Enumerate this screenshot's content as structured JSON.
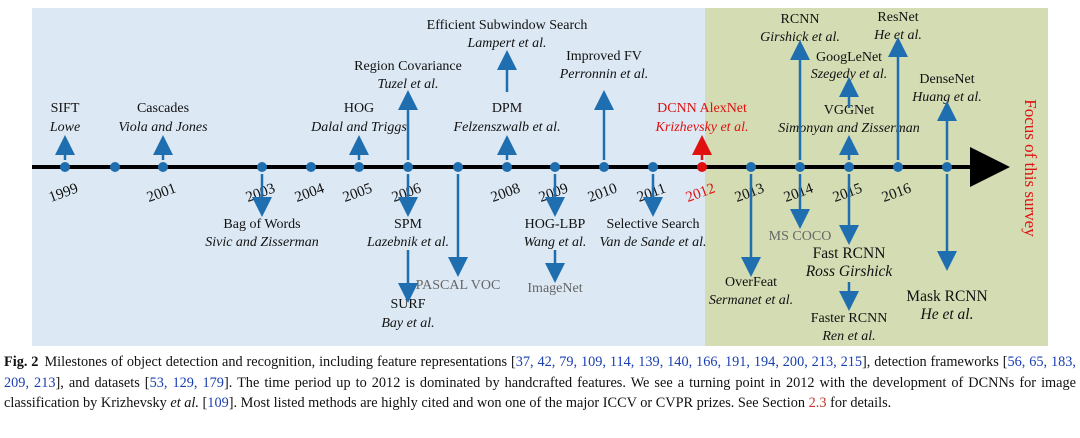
{
  "figure": {
    "side_label": "Focus of this survey",
    "years": [
      "1999",
      "2001",
      "2003",
      "2004",
      "2005",
      "2006",
      "2008",
      "2009",
      "2010",
      "2011",
      "2012",
      "2013",
      "2014",
      "2015",
      "2016"
    ],
    "milestones": [
      {
        "label": "SIFT",
        "authors": "Lowe"
      },
      {
        "label": "Cascades",
        "authors": "Viola and Jones"
      },
      {
        "label": "HOG",
        "authors": "Dalal and Triggs"
      },
      {
        "label": "Region Covariance",
        "authors": "Tuzel et al."
      },
      {
        "label": "Efficient Subwindow Search",
        "authors": "Lampert et al."
      },
      {
        "label": "DPM",
        "authors": "Felzenszwalb et al."
      },
      {
        "label": "Improved FV",
        "authors": "Perronnin et al."
      },
      {
        "label": "DCNN AlexNet",
        "authors": "Krizhevsky et al."
      },
      {
        "label": "RCNN",
        "authors": "Girshick et al."
      },
      {
        "label": "GoogLeNet",
        "authors": "Szegedy et al."
      },
      {
        "label": "VGGNet",
        "authors": "Simonyan and Zisserman"
      },
      {
        "label": "ResNet",
        "authors": "He et al."
      },
      {
        "label": "DenseNet",
        "authors": "Huang et al."
      },
      {
        "label": "Bag of Words",
        "authors": "Sivic and Zisserman"
      },
      {
        "label": "SPM",
        "authors": "Lazebnik et al."
      },
      {
        "label": "SURF",
        "authors": "Bay et al."
      },
      {
        "label": "PASCAL VOC"
      },
      {
        "label": "HOG-LBP",
        "authors": "Wang et al."
      },
      {
        "label": "ImageNet"
      },
      {
        "label": "Selective Search",
        "authors": "Van de Sande et al."
      },
      {
        "label": "OverFeat",
        "authors": "Sermanet et al."
      },
      {
        "label": "MS COCO"
      },
      {
        "label": "Fast RCNN",
        "authors": "Ross Girshick"
      },
      {
        "label": "Faster RCNN",
        "authors": "Ren et al."
      },
      {
        "label": "Mask RCNN",
        "authors": "He et al."
      }
    ]
  },
  "caption": {
    "label": "Fig. 2",
    "segments": [
      {
        "text": "Milestones of object detection and recognition, including feature representations ["
      },
      {
        "text": "37, 42, 79, 109, 114, 139, 140, 166, 191, 194, 200, 213, 215",
        "style": "cite"
      },
      {
        "text": "], detection frameworks ["
      },
      {
        "text": "56, 65, 183, 209, 213",
        "style": "cite"
      },
      {
        "text": "], and datasets ["
      },
      {
        "text": "53, 129, 179",
        "style": "cite"
      },
      {
        "text": "]. The time period up to 2012 is dominated by handcrafted features. We see a turning point in 2012 with the development of DCNNs for image classification by Krizhevsky "
      },
      {
        "text": "et al.",
        "style": "italic"
      },
      {
        "text": " ["
      },
      {
        "text": "109",
        "style": "cite"
      },
      {
        "text": "]. Most listed methods are highly cited and won one of the major ICCV or CVPR prizes. See Section "
      },
      {
        "text": "2.3",
        "style": "ref"
      },
      {
        "text": " for details."
      }
    ]
  }
}
